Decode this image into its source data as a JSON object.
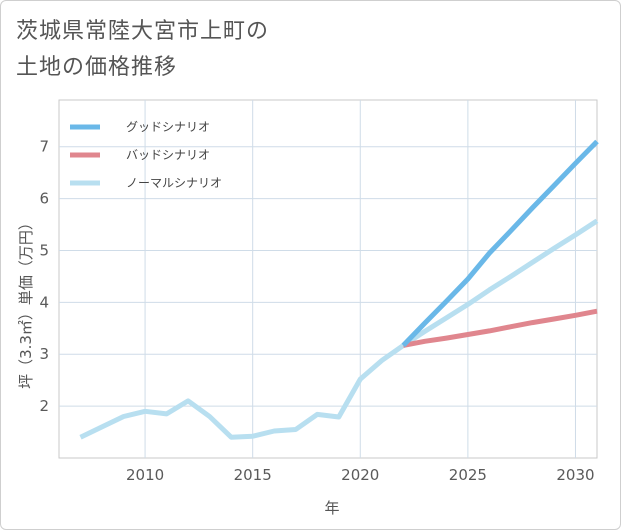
{
  "page": {
    "title": "茨城県常陸大宮市上町の\n土地の価格推移"
  },
  "chart_data": {
    "type": "line",
    "title": "茨城県常陸大宮市上町の土地の価格推移",
    "xlabel": "年",
    "ylabel": "坪（3.3㎡）単価（万円）",
    "xlim": [
      2006,
      2031
    ],
    "ylim": [
      1,
      7.9
    ],
    "xticks": [
      2010,
      2015,
      2020,
      2025,
      2030
    ],
    "yticks": [
      2,
      3,
      4,
      5,
      6,
      7
    ],
    "grid": true,
    "legend_position": "top-left",
    "series": [
      {
        "name": "グッドシナリオ",
        "color": "#6ab8e8",
        "x": [
          2022,
          2023,
          2024,
          2025,
          2026,
          2027,
          2028,
          2029,
          2030,
          2031
        ],
        "y": [
          3.17,
          3.6,
          4.02,
          4.45,
          4.95,
          5.38,
          5.82,
          6.25,
          6.68,
          7.1
        ]
      },
      {
        "name": "バッドシナリオ",
        "color": "#e0868e",
        "x": [
          2022,
          2023,
          2024,
          2025,
          2026,
          2027,
          2028,
          2029,
          2030,
          2031
        ],
        "y": [
          3.17,
          3.25,
          3.31,
          3.38,
          3.45,
          3.53,
          3.61,
          3.68,
          3.75,
          3.83
        ]
      },
      {
        "name": "ノーマルシナリオ",
        "color": "#b8dff0",
        "x": [
          2007,
          2008,
          2009,
          2010,
          2011,
          2012,
          2013,
          2014,
          2015,
          2016,
          2017,
          2018,
          2019,
          2020,
          2021,
          2022,
          2023,
          2024,
          2025,
          2026,
          2027,
          2028,
          2029,
          2030,
          2031
        ],
        "y": [
          1.4,
          1.6,
          1.8,
          1.9,
          1.85,
          2.1,
          1.8,
          1.4,
          1.42,
          1.52,
          1.55,
          1.84,
          1.79,
          2.52,
          2.88,
          3.17,
          3.44,
          3.7,
          3.96,
          4.24,
          4.5,
          4.77,
          5.04,
          5.3,
          5.57
        ]
      }
    ]
  }
}
